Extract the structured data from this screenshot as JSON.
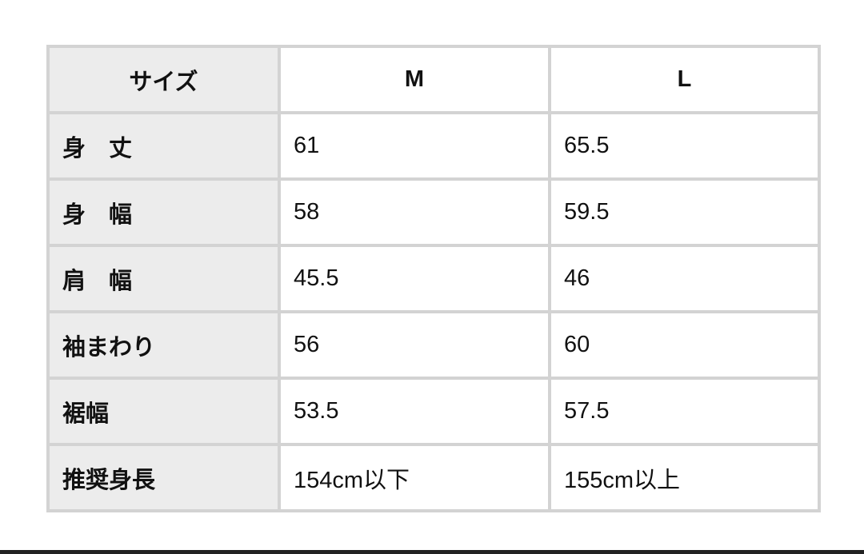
{
  "table": {
    "header": {
      "label": "サイズ",
      "columns": [
        "M",
        "L"
      ]
    },
    "rows": [
      {
        "label": "身　丈",
        "values": [
          "61",
          "65.5"
        ]
      },
      {
        "label": "身　幅",
        "values": [
          "58",
          "59.5"
        ]
      },
      {
        "label": "肩　幅",
        "values": [
          "45.5",
          "46"
        ]
      },
      {
        "label": "袖まわり",
        "values": [
          "56",
          "60"
        ]
      },
      {
        "label": "裾幅",
        "values": [
          "53.5",
          "57.5"
        ]
      },
      {
        "label": "推奨身長",
        "values": [
          "154cm以下",
          "155cm以上"
        ]
      }
    ]
  },
  "colors": {
    "header_bg": "#ececec",
    "border": "#d3d3d3"
  }
}
